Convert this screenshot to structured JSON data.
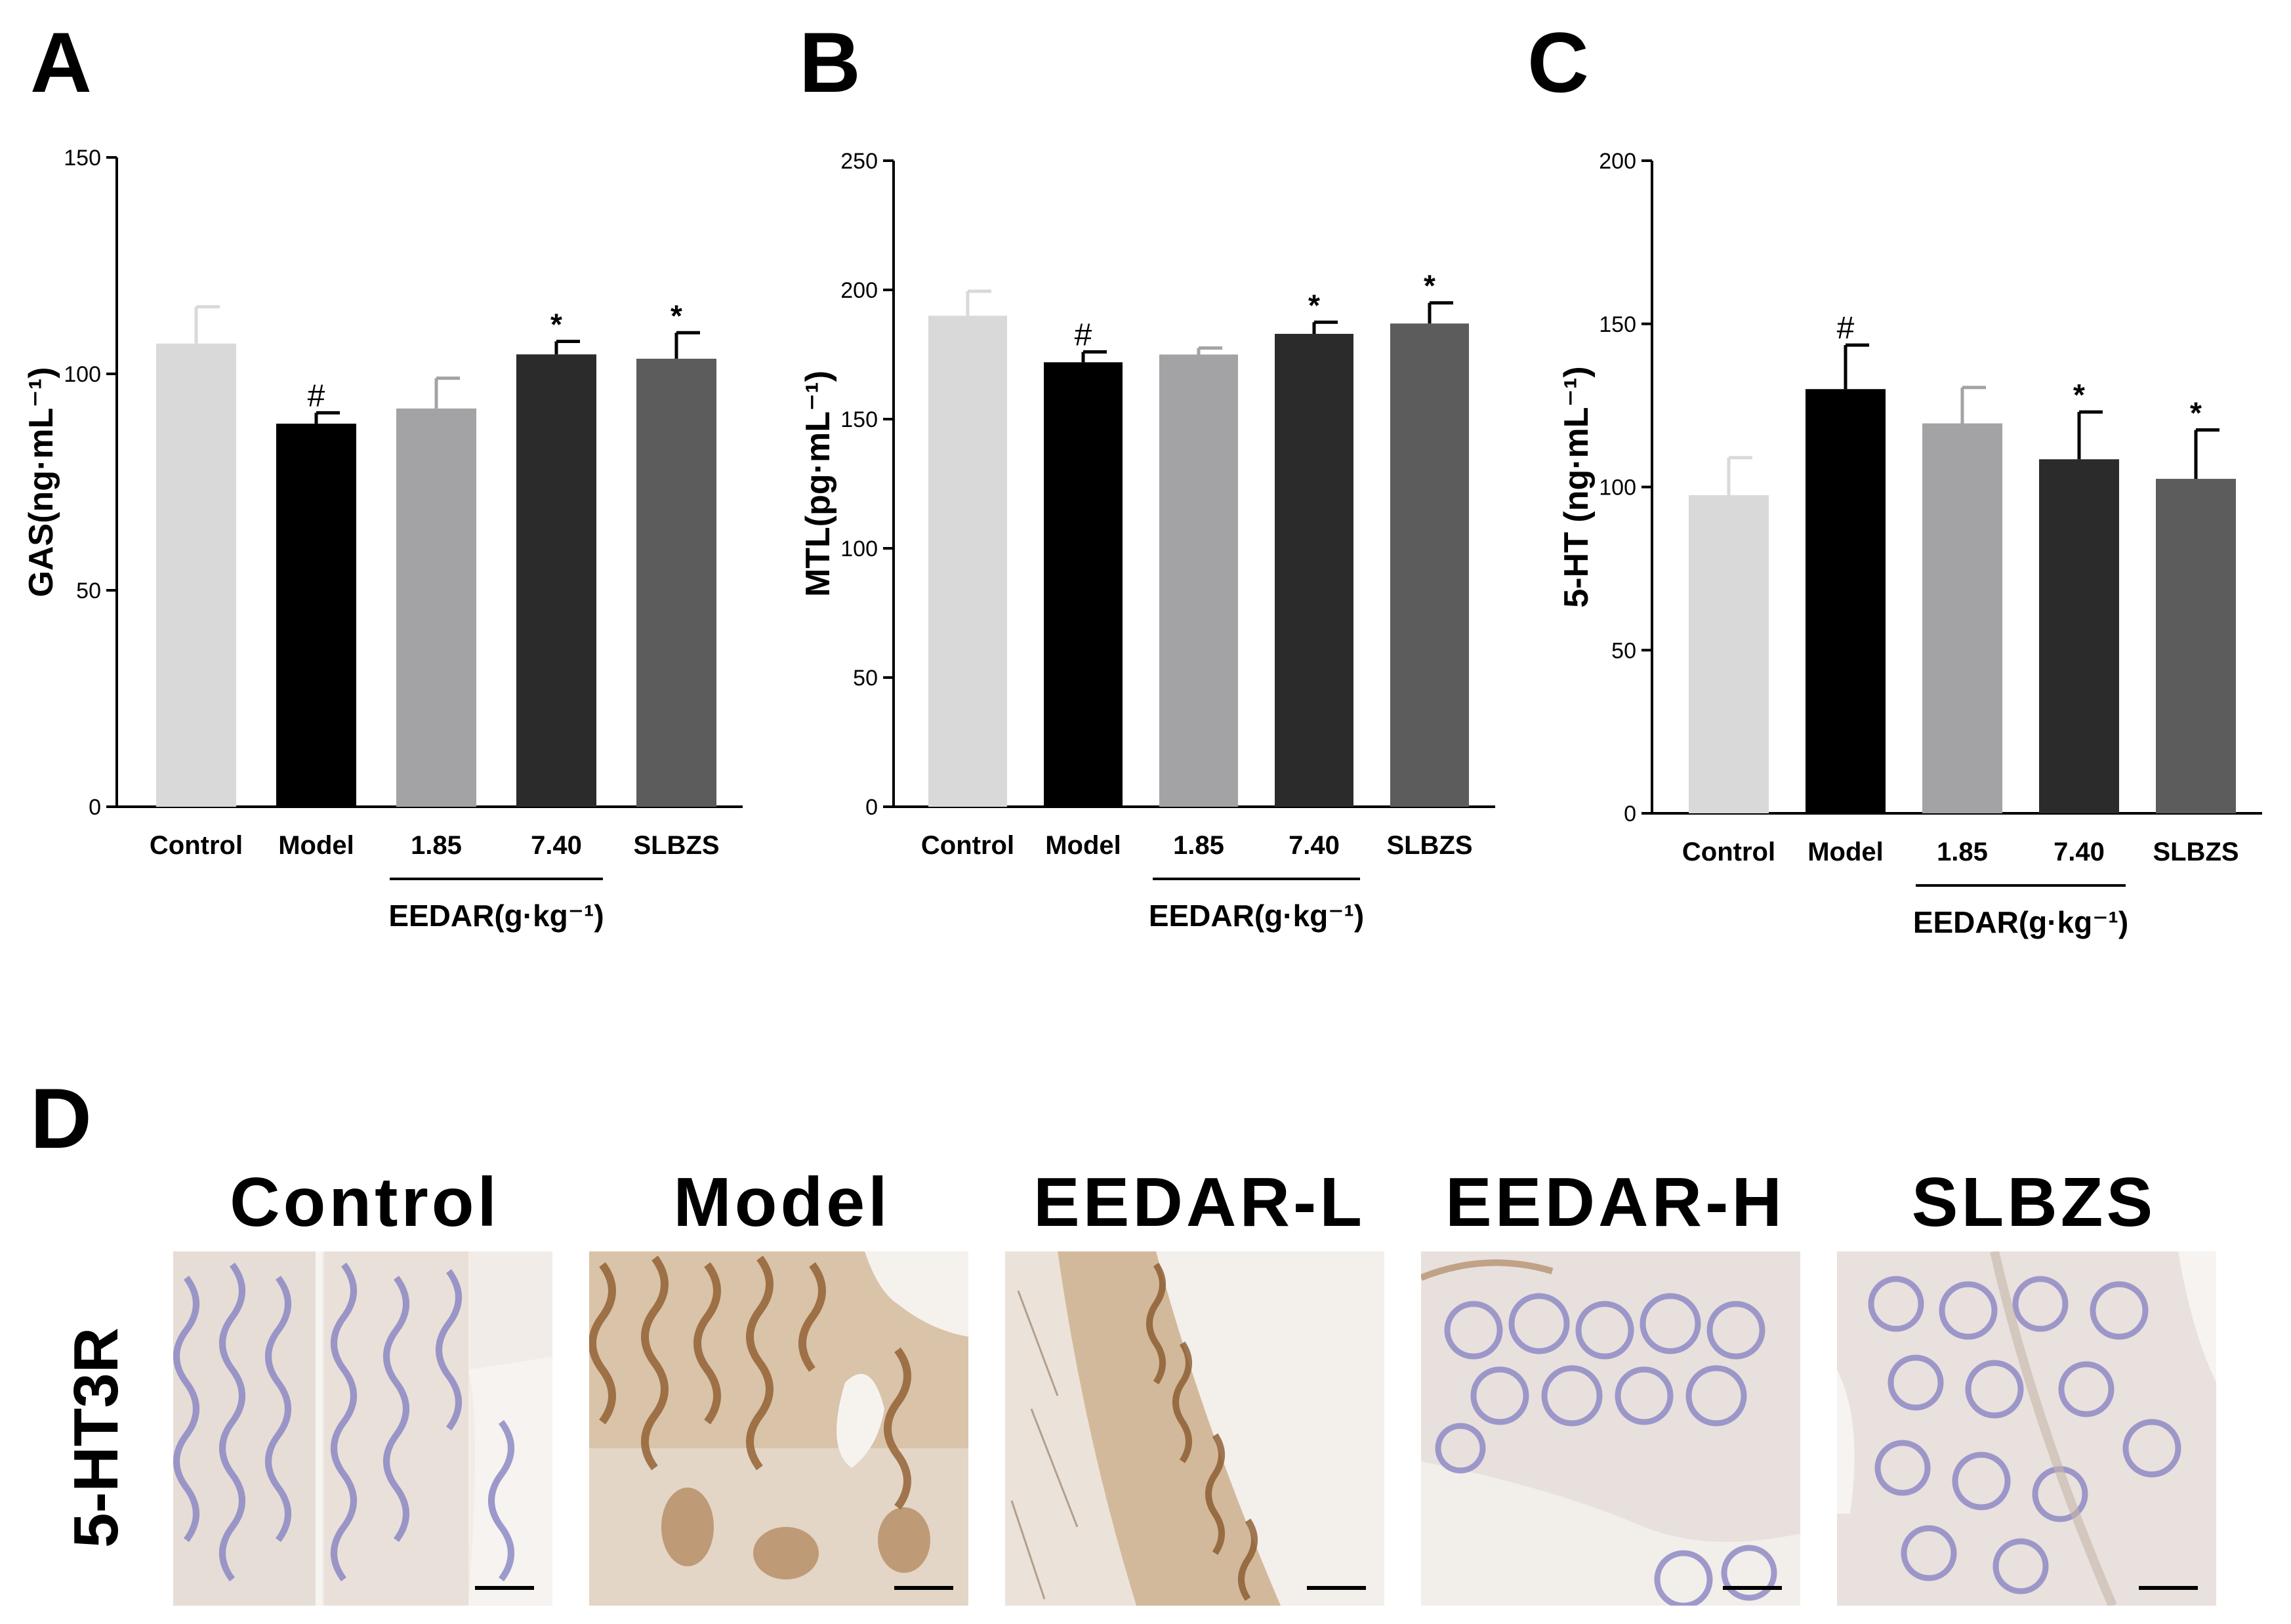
{
  "panels": {
    "A": {
      "letter": "A"
    },
    "B": {
      "letter": "B"
    },
    "C": {
      "letter": "C"
    },
    "D": {
      "letter": "D"
    }
  },
  "chart_data": [
    {
      "type": "bar",
      "panel": "A",
      "categories": [
        "Control",
        "Model",
        "1.85",
        "7.40",
        "SLBZS"
      ],
      "values": [
        107,
        88.5,
        92,
        104.5,
        103.5
      ],
      "errors": [
        8.5,
        2.5,
        7,
        3,
        6
      ],
      "annotations": [
        "",
        "#",
        "",
        "*",
        "*"
      ],
      "ylabel": "GAS(ng·mL⁻¹)",
      "ylim": [
        0,
        150
      ],
      "yticks": [
        0,
        50,
        100,
        150
      ],
      "group_label": "EEDAR(g·kg⁻¹)",
      "group_categories": [
        "1.85",
        "7.40"
      ],
      "colors": [
        "#d9d9d9",
        "#000000",
        "#a3a3a6",
        "#2b2b2b",
        "#5c5c5c"
      ]
    },
    {
      "type": "bar",
      "panel": "B",
      "categories": [
        "Control",
        "Model",
        "1.85",
        "7.40",
        "SLBZS"
      ],
      "values": [
        190,
        172,
        175,
        183,
        187
      ],
      "errors": [
        9.5,
        4,
        2.5,
        4.5,
        8
      ],
      "annotations": [
        "",
        "#",
        "",
        "*",
        "*"
      ],
      "ylabel": "MTL(pg·mL⁻¹)",
      "ylim": [
        0,
        250
      ],
      "yticks": [
        0,
        50,
        100,
        150,
        200,
        250
      ],
      "group_label": "EEDAR(g·kg⁻¹)",
      "group_categories": [
        "1.85",
        "7.40"
      ],
      "colors": [
        "#d9d9d9",
        "#000000",
        "#a3a3a6",
        "#2b2b2b",
        "#5c5c5c"
      ]
    },
    {
      "type": "bar",
      "panel": "C",
      "categories": [
        "Control",
        "Model",
        "1.85",
        "7.40",
        "SLBZS"
      ],
      "values": [
        97.5,
        130,
        119.5,
        108.5,
        102.5
      ],
      "errors": [
        11.5,
        13.5,
        11,
        14.5,
        15
      ],
      "annotations": [
        "",
        "#",
        "",
        "*",
        "*"
      ],
      "ylabel": "5-HT (ng·mL⁻¹)",
      "ylim": [
        0,
        200
      ],
      "yticks": [
        0,
        50,
        100,
        150,
        200
      ],
      "group_label": "EEDAR(g·kg⁻¹)",
      "group_categories": [
        "1.85",
        "7.40"
      ],
      "colors": [
        "#d9d9d9",
        "#000000",
        "#a3a3a6",
        "#2b2b2b",
        "#5c5c5c"
      ]
    }
  ],
  "micrographs": {
    "row_label": "5-HT3R",
    "titles": [
      "Control",
      "Model",
      "EEDAR-L",
      "EEDAR-H",
      "SLBZS"
    ],
    "stain_intensity": [
      "light",
      "strong",
      "moderate",
      "light",
      "light"
    ]
  },
  "colors": {
    "tissue_base": "#e9e2dc",
    "hematoxylin": "#8a86c4",
    "dab_brown": "#9a6a3a",
    "background": "#ffffff"
  }
}
